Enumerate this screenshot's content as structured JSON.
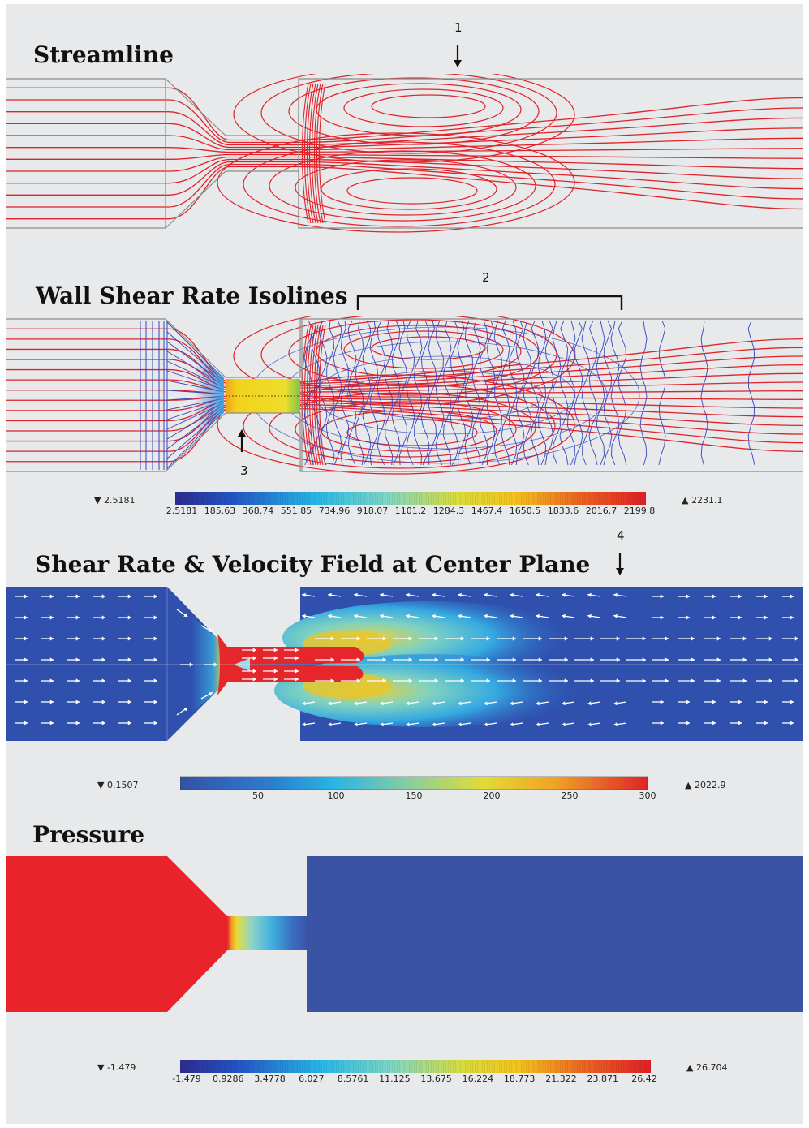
{
  "colors": {
    "streamline": "#e0232a",
    "isoline": "#3346c2",
    "high": "#e8232a",
    "low": "#3a53a4",
    "background": "#e7e9ea"
  },
  "panels": {
    "streamline": {
      "title": "Streamline"
    },
    "wall_shear": {
      "title": "Wall Shear Rate Isolines"
    },
    "shear_velocity": {
      "title": "Shear Rate & Velocity Field at Center Plane"
    },
    "pressure": {
      "title": "Pressure"
    }
  },
  "callouts": {
    "c1": "1",
    "c2": "2",
    "c3": "3",
    "c4": "4"
  },
  "colorbars": {
    "wall_shear": {
      "min": "▼ 2.5181",
      "max": "▲ 2231.1",
      "ticks": [
        "2.5181",
        "185.63",
        "368.74",
        "551.85",
        "734.96",
        "918.07",
        "1101.2",
        "1284.3",
        "1467.4",
        "1650.5",
        "1833.6",
        "2016.7",
        "2199.8"
      ]
    },
    "shear_velocity": {
      "min": "▼ 0.1507",
      "max": "▲ 2022.9",
      "ticks": [
        "50",
        "100",
        "150",
        "200",
        "250",
        "300"
      ]
    },
    "pressure": {
      "min": "▼ -1.479",
      "max": "▲ 26.704",
      "ticks": [
        "-1.479",
        "0.9286",
        "3.4778",
        "6.027",
        "8.5761",
        "11.125",
        "13.675",
        "16.224",
        "18.773",
        "21.322",
        "23.871",
        "26.42"
      ]
    }
  }
}
